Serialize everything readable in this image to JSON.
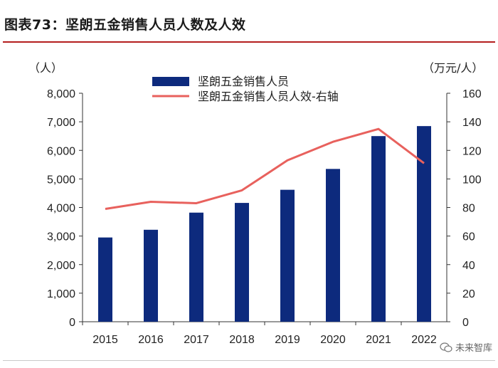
{
  "header": {
    "title": "图表73：坚朗五金销售人员人数及人效"
  },
  "watermark": {
    "text": "未来智库",
    "icon": "wechat-icon"
  },
  "colors": {
    "bar": "#0d2a7d",
    "line": "#e8615d",
    "title_rule": "#b41e1e"
  },
  "chart_data": {
    "type": "bar",
    "title": "坚朗五金销售人员人数及人效",
    "categories": [
      "2015",
      "2016",
      "2017",
      "2018",
      "2019",
      "2020",
      "2021",
      "2022"
    ],
    "left_axis": {
      "label": "（人）",
      "min": 0,
      "max": 8000,
      "ticks": [
        "0",
        "1,000",
        "2,000",
        "3,000",
        "4,000",
        "5,000",
        "6,000",
        "7,000",
        "8,000"
      ]
    },
    "right_axis": {
      "label": "（万元/人）",
      "min": 0,
      "max": 160,
      "ticks": [
        "0",
        "20",
        "40",
        "60",
        "80",
        "100",
        "120",
        "140",
        "160"
      ]
    },
    "series": [
      {
        "name": "坚朗五金销售人员",
        "type": "bar",
        "axis": "left",
        "values": [
          2950,
          3220,
          3820,
          4160,
          4620,
          5350,
          6500,
          6850
        ]
      },
      {
        "name": "坚朗五金销售人员人效-右轴",
        "type": "line",
        "axis": "right",
        "values": [
          79,
          84,
          83,
          92,
          113,
          126,
          135,
          111
        ]
      }
    ],
    "legend": "top-center",
    "grid": false
  }
}
